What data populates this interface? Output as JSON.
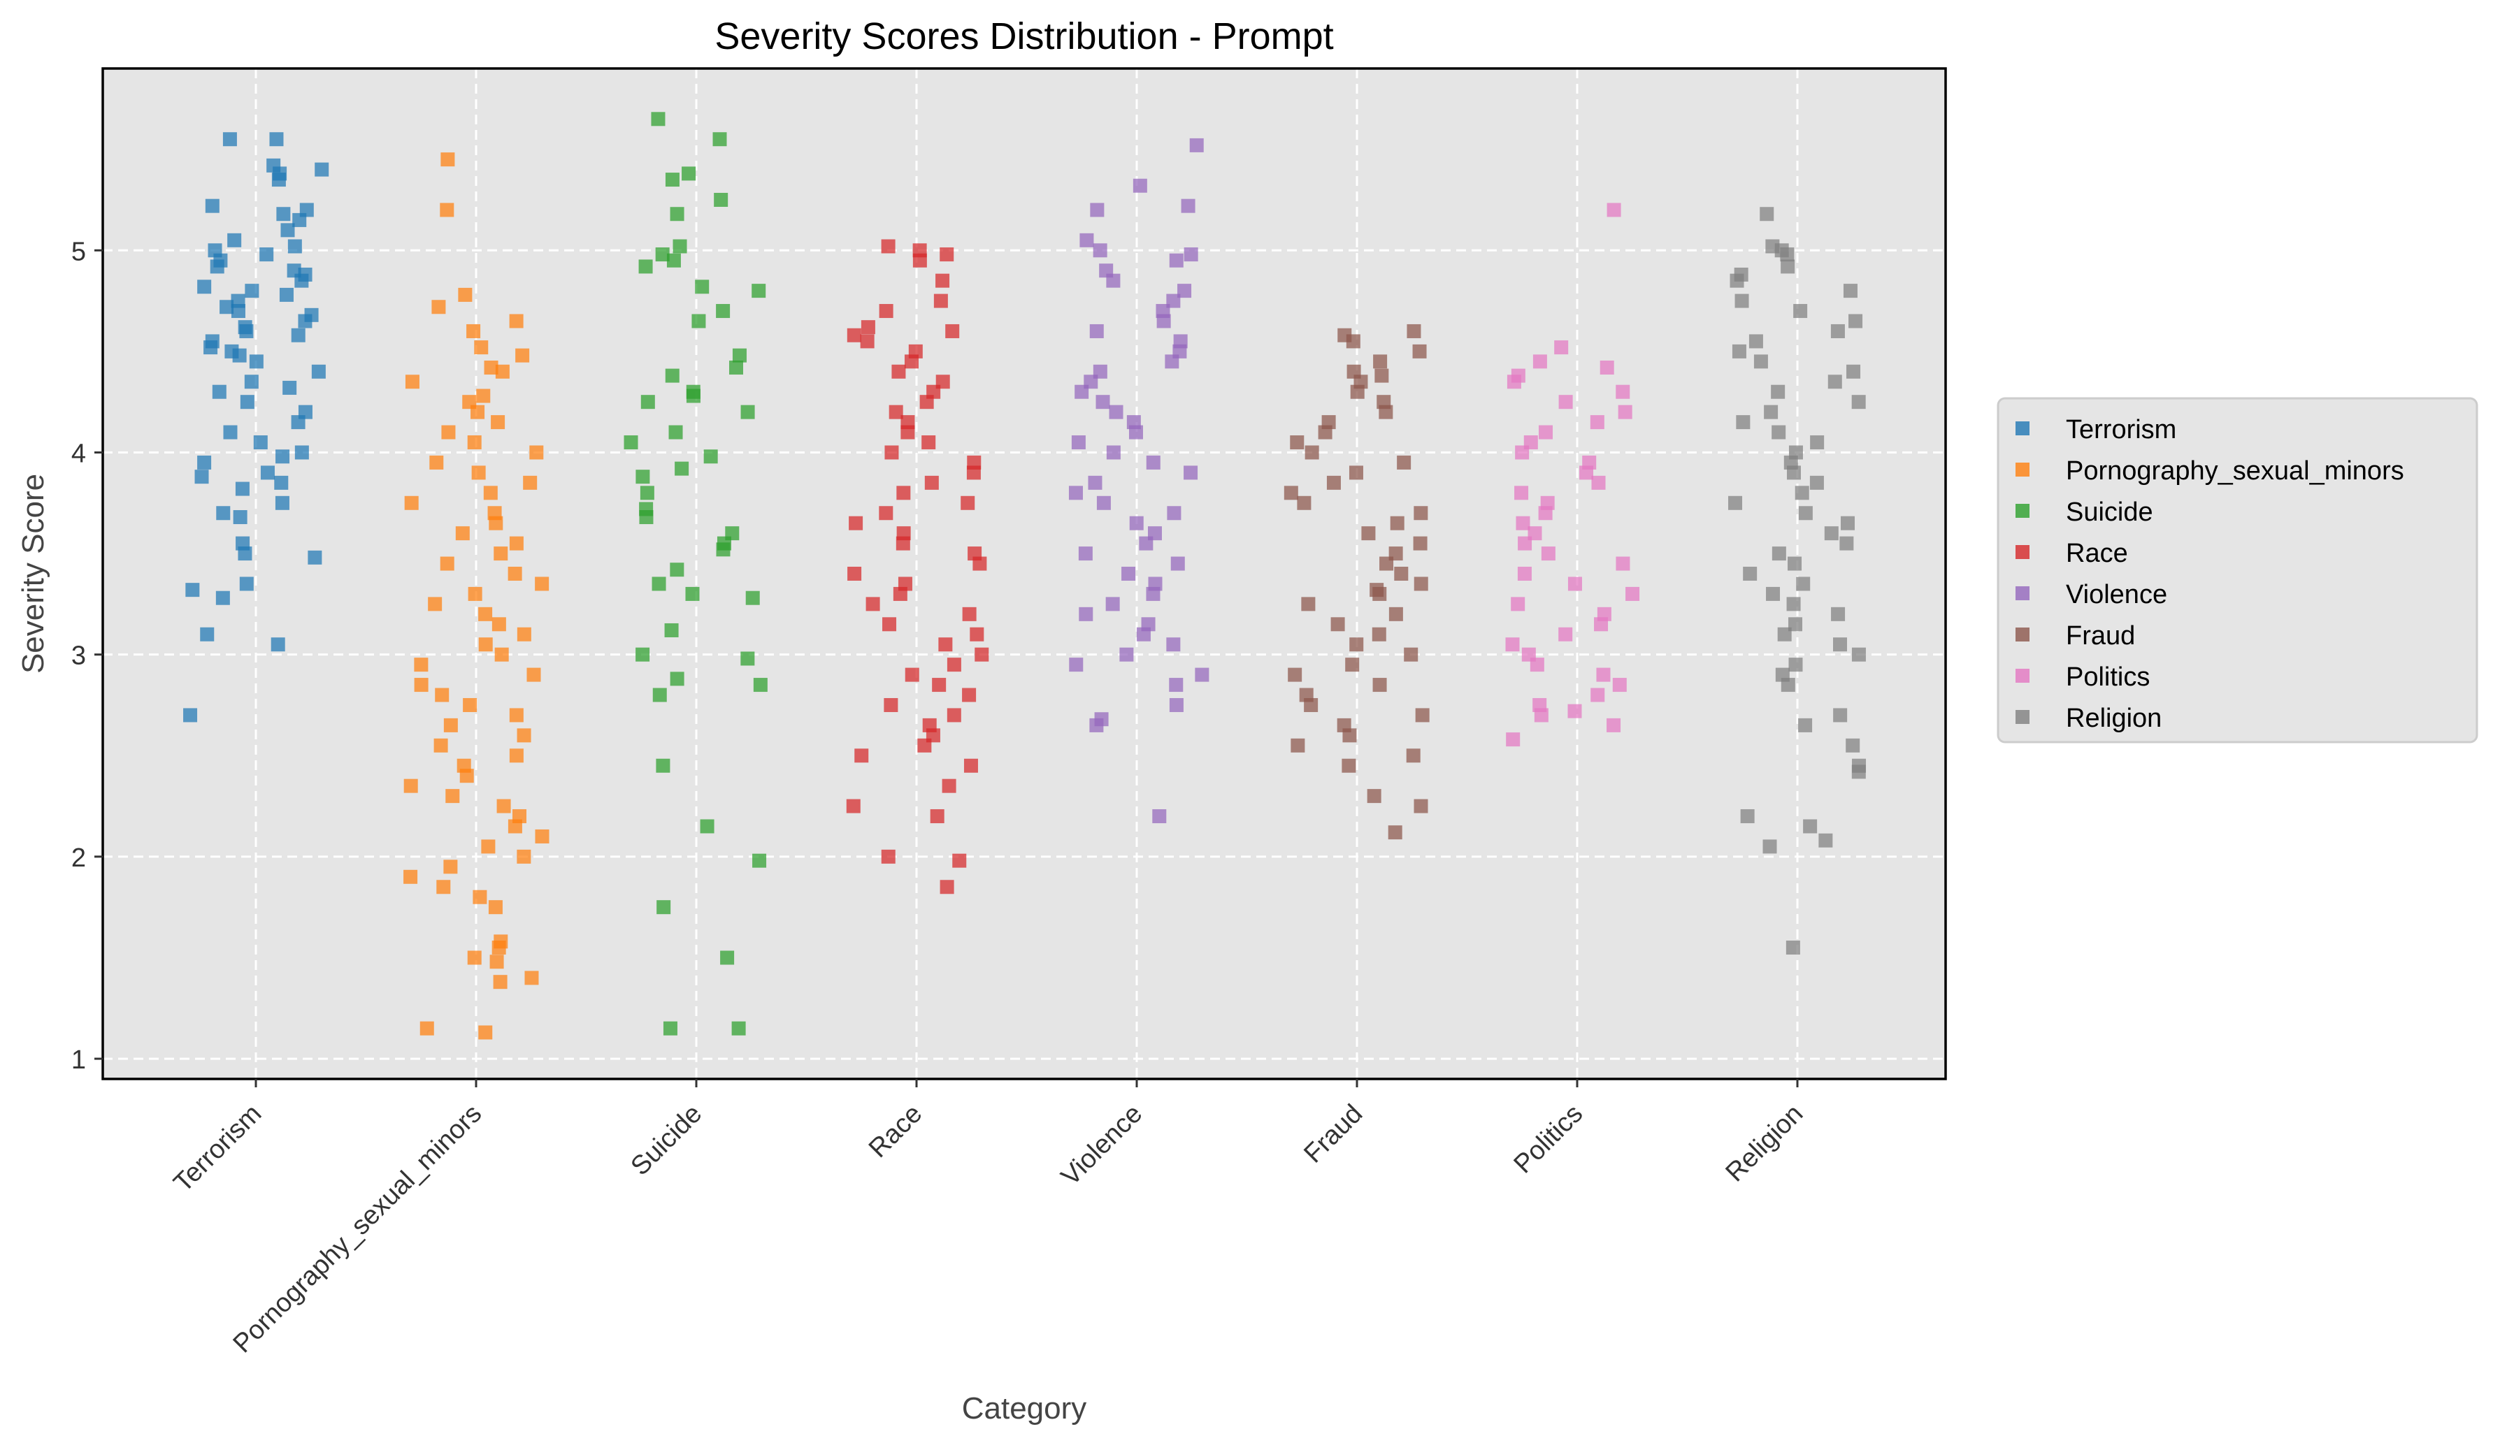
{
  "chart_data": {
    "type": "scatter",
    "subtype": "jittered strip plot",
    "title": "Severity Scores Distribution - Prompt",
    "xlabel": "Category",
    "ylabel": "Severity Score",
    "ylim": [
      0.9,
      5.9
    ],
    "yticks": [
      1,
      2,
      3,
      4,
      5
    ],
    "grid": true,
    "legend_position": "right, outside plot",
    "marker": "square",
    "categories": [
      "Terrorism",
      "Pornography_sexual_minors",
      "Suicide",
      "Race",
      "Violence",
      "Fraud",
      "Politics",
      "Religion"
    ],
    "series": [
      {
        "name": "Terrorism",
        "color": "#1f77b4",
        "values": [
          5.55,
          5.55,
          5.42,
          5.4,
          5.38,
          5.35,
          5.22,
          5.2,
          5.18,
          5.15,
          5.1,
          5.05,
          5.02,
          5.0,
          4.98,
          4.95,
          4.92,
          4.9,
          4.88,
          4.85,
          4.82,
          4.8,
          4.78,
          4.75,
          4.72,
          4.7,
          4.68,
          4.65,
          4.62,
          4.6,
          4.58,
          4.55,
          4.52,
          4.5,
          4.48,
          4.45,
          4.4,
          4.35,
          4.32,
          4.3,
          4.25,
          4.2,
          4.15,
          4.1,
          4.05,
          4.0,
          3.98,
          3.95,
          3.9,
          3.88,
          3.85,
          3.82,
          3.75,
          3.7,
          3.68,
          3.55,
          3.5,
          3.48,
          3.35,
          3.32,
          3.28,
          3.1,
          3.05,
          2.7
        ]
      },
      {
        "name": "Pornography_sexual_minors",
        "color": "#ff7f0e",
        "values": [
          5.45,
          5.2,
          4.78,
          4.72,
          4.65,
          4.6,
          4.52,
          4.48,
          4.42,
          4.4,
          4.35,
          4.28,
          4.25,
          4.2,
          4.15,
          4.1,
          4.05,
          4.0,
          3.95,
          3.9,
          3.85,
          3.8,
          3.75,
          3.7,
          3.65,
          3.6,
          3.55,
          3.5,
          3.45,
          3.4,
          3.35,
          3.3,
          3.25,
          3.2,
          3.15,
          3.1,
          3.05,
          3.0,
          2.95,
          2.9,
          2.85,
          2.8,
          2.75,
          2.7,
          2.65,
          2.6,
          2.55,
          2.5,
          2.45,
          2.4,
          2.35,
          2.3,
          2.25,
          2.2,
          2.15,
          2.1,
          2.05,
          2.0,
          1.95,
          1.9,
          1.85,
          1.8,
          1.75,
          1.58,
          1.55,
          1.5,
          1.48,
          1.4,
          1.38,
          1.15,
          1.13
        ]
      },
      {
        "name": "Suicide",
        "color": "#2ca02c",
        "values": [
          5.65,
          5.55,
          5.38,
          5.35,
          5.25,
          5.18,
          5.02,
          4.98,
          4.95,
          4.92,
          4.82,
          4.8,
          4.7,
          4.65,
          4.48,
          4.42,
          4.38,
          4.3,
          4.28,
          4.25,
          4.2,
          4.1,
          4.05,
          3.98,
          3.92,
          3.88,
          3.8,
          3.72,
          3.68,
          3.6,
          3.55,
          3.52,
          3.42,
          3.35,
          3.3,
          3.28,
          3.12,
          3.0,
          2.98,
          2.88,
          2.85,
          2.8,
          2.45,
          2.15,
          1.98,
          1.75,
          1.5,
          1.15,
          1.15
        ]
      },
      {
        "name": "Race",
        "color": "#d62728",
        "values": [
          5.02,
          5.0,
          4.98,
          4.95,
          4.85,
          4.75,
          4.7,
          4.62,
          4.6,
          4.58,
          4.55,
          4.5,
          4.45,
          4.4,
          4.35,
          4.3,
          4.25,
          4.2,
          4.15,
          4.1,
          4.05,
          4.0,
          3.95,
          3.9,
          3.85,
          3.8,
          3.75,
          3.7,
          3.65,
          3.6,
          3.55,
          3.5,
          3.45,
          3.4,
          3.35,
          3.3,
          3.25,
          3.2,
          3.15,
          3.1,
          3.05,
          3.0,
          2.95,
          2.9,
          2.85,
          2.8,
          2.75,
          2.7,
          2.65,
          2.6,
          2.55,
          2.5,
          2.45,
          2.35,
          2.25,
          2.2,
          2.0,
          1.98,
          1.85
        ]
      },
      {
        "name": "Violence",
        "color": "#9467bd",
        "values": [
          5.52,
          5.32,
          5.22,
          5.2,
          5.05,
          5.0,
          4.98,
          4.95,
          4.9,
          4.85,
          4.8,
          4.75,
          4.7,
          4.65,
          4.6,
          4.55,
          4.5,
          4.45,
          4.4,
          4.35,
          4.3,
          4.25,
          4.2,
          4.15,
          4.1,
          4.05,
          4.0,
          3.95,
          3.9,
          3.85,
          3.8,
          3.75,
          3.7,
          3.65,
          3.6,
          3.55,
          3.5,
          3.45,
          3.4,
          3.35,
          3.3,
          3.25,
          3.2,
          3.15,
          3.1,
          3.05,
          3.0,
          2.95,
          2.9,
          2.85,
          2.75,
          2.68,
          2.65,
          2.2
        ]
      },
      {
        "name": "Fraud",
        "color": "#8c564b",
        "values": [
          4.6,
          4.58,
          4.55,
          4.5,
          4.45,
          4.4,
          4.38,
          4.35,
          4.3,
          4.25,
          4.2,
          4.15,
          4.1,
          4.05,
          4.0,
          3.95,
          3.9,
          3.85,
          3.8,
          3.75,
          3.7,
          3.65,
          3.6,
          3.55,
          3.5,
          3.45,
          3.4,
          3.35,
          3.32,
          3.3,
          3.25,
          3.2,
          3.15,
          3.1,
          3.05,
          3.0,
          2.95,
          2.9,
          2.85,
          2.8,
          2.75,
          2.7,
          2.65,
          2.6,
          2.55,
          2.5,
          2.45,
          2.3,
          2.25,
          2.12
        ]
      },
      {
        "name": "Politics",
        "color": "#e377c2",
        "values": [
          5.2,
          4.52,
          4.45,
          4.42,
          4.38,
          4.35,
          4.3,
          4.25,
          4.2,
          4.15,
          4.1,
          4.05,
          4.0,
          3.95,
          3.9,
          3.85,
          3.8,
          3.75,
          3.7,
          3.65,
          3.6,
          3.55,
          3.5,
          3.45,
          3.4,
          3.35,
          3.3,
          3.25,
          3.2,
          3.15,
          3.1,
          3.05,
          3.0,
          2.95,
          2.9,
          2.85,
          2.8,
          2.75,
          2.72,
          2.7,
          2.65,
          2.58
        ]
      },
      {
        "name": "Religion",
        "color": "#7f7f7f",
        "values": [
          5.18,
          5.02,
          5.0,
          4.98,
          4.92,
          4.88,
          4.85,
          4.8,
          4.75,
          4.7,
          4.65,
          4.6,
          4.55,
          4.5,
          4.45,
          4.4,
          4.35,
          4.3,
          4.25,
          4.2,
          4.15,
          4.1,
          4.05,
          4.0,
          3.95,
          3.9,
          3.85,
          3.8,
          3.75,
          3.7,
          3.65,
          3.6,
          3.55,
          3.5,
          3.45,
          3.4,
          3.35,
          3.3,
          3.25,
          3.2,
          3.15,
          3.1,
          3.05,
          3.0,
          2.95,
          2.9,
          2.85,
          2.7,
          2.65,
          2.55,
          2.45,
          2.42,
          2.2,
          2.15,
          2.08,
          2.05,
          1.55
        ]
      }
    ]
  }
}
